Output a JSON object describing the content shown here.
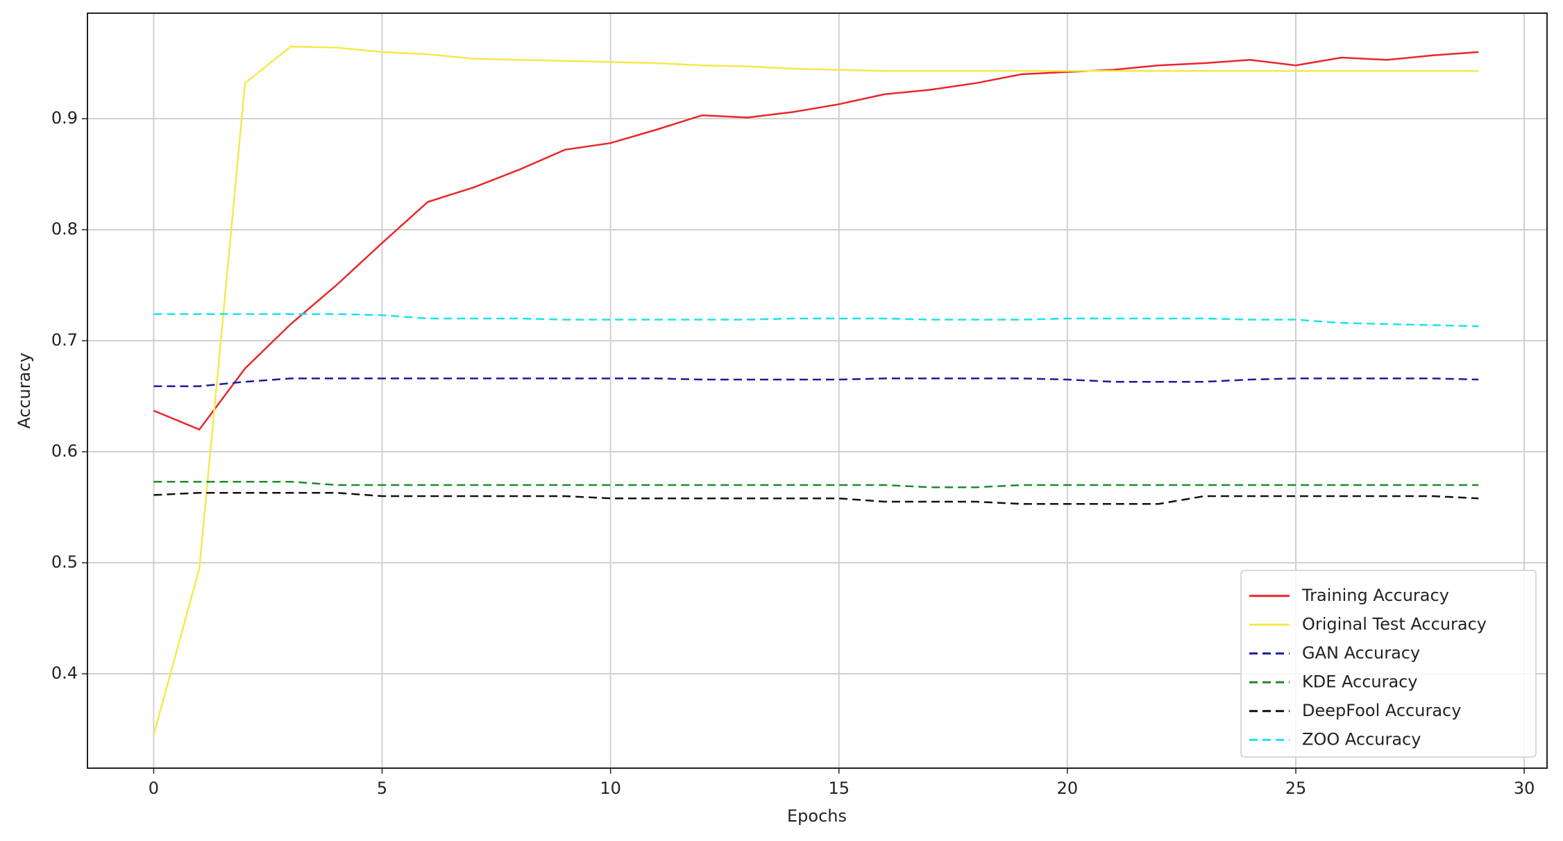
{
  "chart_data": {
    "type": "line",
    "x_label": "Epochs",
    "y_label": "Accuracy",
    "x": [
      0,
      1,
      2,
      3,
      4,
      5,
      6,
      7,
      8,
      9,
      10,
      11,
      12,
      13,
      14,
      15,
      16,
      17,
      18,
      19,
      20,
      21,
      22,
      23,
      24,
      25,
      26,
      27,
      28,
      29
    ],
    "xlim": [
      -1.45,
      30.5
    ],
    "xticks": [
      0,
      5,
      10,
      15,
      20,
      25,
      30
    ],
    "ylim": [
      0.315,
      0.995
    ],
    "yticks": [
      0.4,
      0.5,
      0.6,
      0.7,
      0.8,
      0.9
    ],
    "grid": true,
    "legend": "lower right",
    "series": [
      {
        "name": "Training Accuracy",
        "color": "#e8262a",
        "linestyle": "solid",
        "values": [
          0.637,
          0.62,
          0.675,
          0.715,
          0.75,
          0.788,
          0.825,
          0.838,
          0.854,
          0.872,
          0.878,
          0.89,
          0.903,
          0.901,
          0.906,
          0.913,
          0.922,
          0.926,
          0.932,
          0.94,
          0.942,
          0.944,
          0.948,
          0.95,
          0.953,
          0.948,
          0.955,
          0.953,
          0.957,
          0.96
        ]
      },
      {
        "name": "Original Test Accuracy",
        "color": "#f7e84a",
        "linestyle": "solid",
        "values": [
          0.345,
          0.495,
          0.932,
          0.965,
          0.964,
          0.96,
          0.958,
          0.954,
          0.953,
          0.952,
          0.951,
          0.95,
          0.948,
          0.947,
          0.945,
          0.944,
          0.943,
          0.943,
          0.943,
          0.943,
          0.943,
          0.943,
          0.943,
          0.943,
          0.943,
          0.943,
          0.943,
          0.943,
          0.943,
          0.943
        ]
      },
      {
        "name": "GAN Accuracy",
        "color": "#1a1aa0",
        "linestyle": "dashed",
        "values": [
          0.659,
          0.659,
          0.663,
          0.666,
          0.666,
          0.666,
          0.666,
          0.666,
          0.666,
          0.666,
          0.666,
          0.666,
          0.665,
          0.665,
          0.665,
          0.665,
          0.666,
          0.666,
          0.666,
          0.666,
          0.665,
          0.663,
          0.663,
          0.663,
          0.665,
          0.666,
          0.666,
          0.666,
          0.666,
          0.665
        ]
      },
      {
        "name": "KDE Accuracy",
        "color": "#1f8a2a",
        "linestyle": "dashed",
        "values": [
          0.573,
          0.573,
          0.573,
          0.573,
          0.57,
          0.57,
          0.57,
          0.57,
          0.57,
          0.57,
          0.57,
          0.57,
          0.57,
          0.57,
          0.57,
          0.57,
          0.57,
          0.568,
          0.568,
          0.57,
          0.57,
          0.57,
          0.57,
          0.57,
          0.57,
          0.57,
          0.57,
          0.57,
          0.57,
          0.57
        ]
      },
      {
        "name": "DeepFool Accuracy",
        "color": "#111111",
        "linestyle": "dashed",
        "values": [
          0.561,
          0.563,
          0.563,
          0.563,
          0.563,
          0.56,
          0.56,
          0.56,
          0.56,
          0.56,
          0.558,
          0.558,
          0.558,
          0.558,
          0.558,
          0.558,
          0.555,
          0.555,
          0.555,
          0.553,
          0.553,
          0.553,
          0.553,
          0.56,
          0.56,
          0.56,
          0.56,
          0.56,
          0.56,
          0.558
        ]
      },
      {
        "name": "ZOO Accuracy",
        "color": "#19e3ec",
        "linestyle": "dashed",
        "values": [
          0.724,
          0.724,
          0.724,
          0.724,
          0.724,
          0.723,
          0.72,
          0.72,
          0.72,
          0.719,
          0.719,
          0.719,
          0.719,
          0.719,
          0.72,
          0.72,
          0.72,
          0.719,
          0.719,
          0.719,
          0.72,
          0.72,
          0.72,
          0.72,
          0.719,
          0.719,
          0.716,
          0.715,
          0.714,
          0.713
        ]
      }
    ]
  }
}
